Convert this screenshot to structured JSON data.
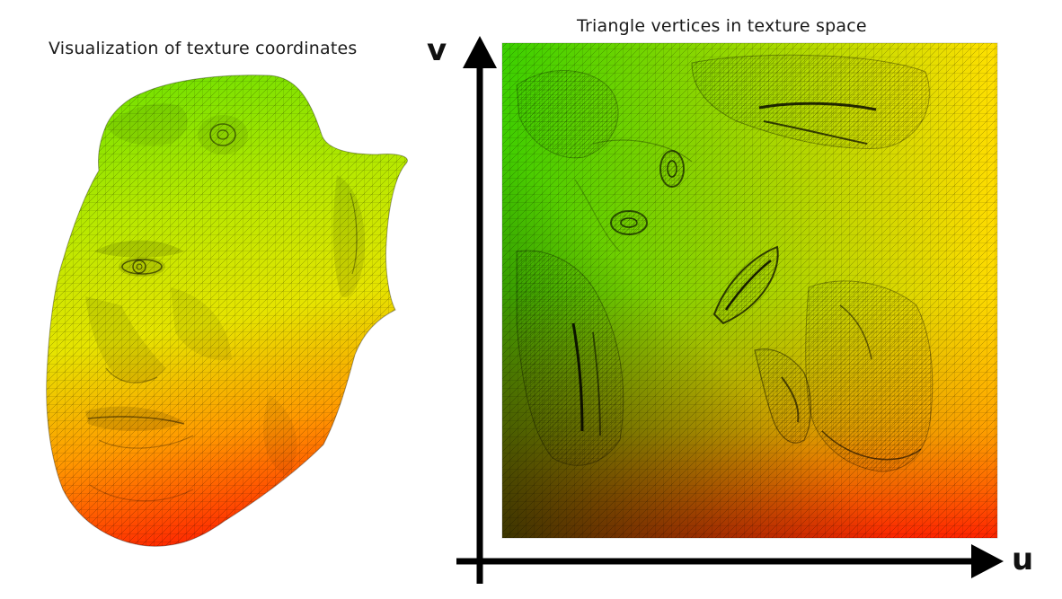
{
  "captions": {
    "left": "Visualization of texture coordinates",
    "right": "Triangle vertices in texture space"
  },
  "axes": {
    "vertical_label": "v",
    "horizontal_label": "u"
  },
  "colors": {
    "uv_top_left": "#3ad400",
    "uv_top_right": "#ffd400",
    "uv_bottom_left": "#2a7a00",
    "uv_bottom_right": "#ff2000",
    "mesh_line": "#000000",
    "axis": "#000000"
  }
}
